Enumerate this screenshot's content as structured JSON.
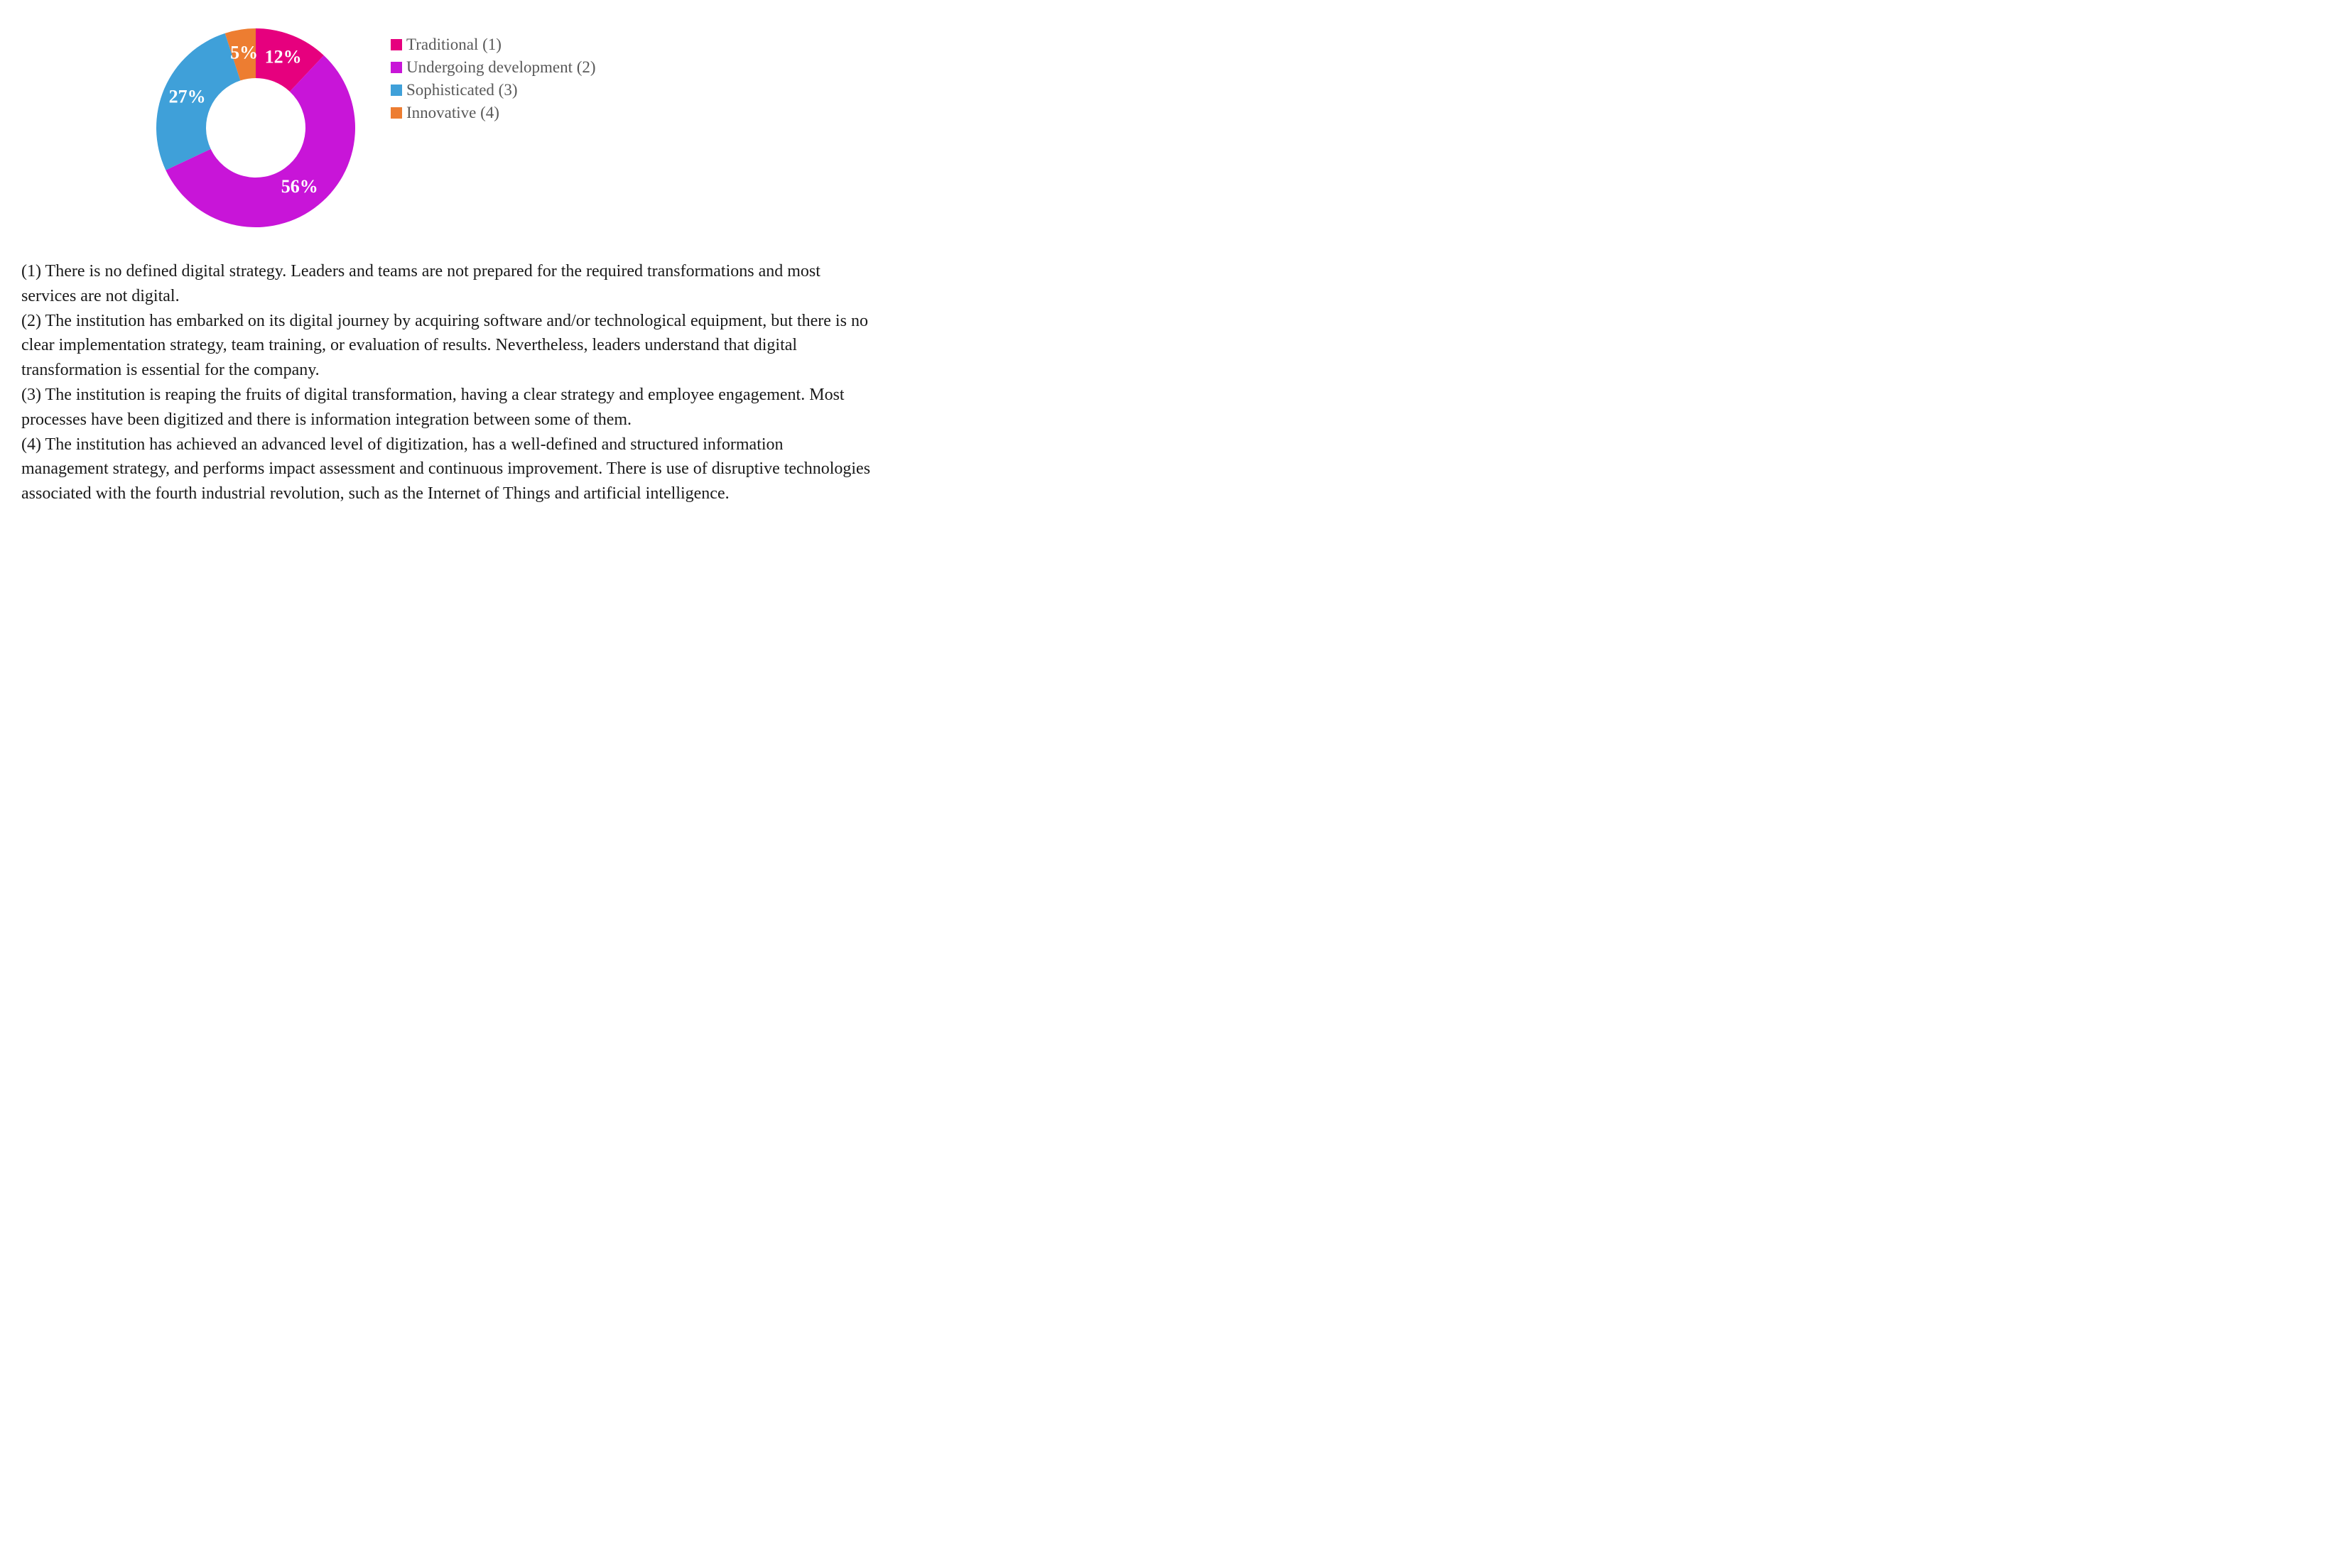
{
  "chart": {
    "type": "donut",
    "outer_radius": 140,
    "inner_radius": 70,
    "background_color": "#ffffff",
    "label_color": "#ffffff",
    "label_fontsize": 26,
    "label_fontweight": "bold",
    "start_angle_deg": -90,
    "slices": [
      {
        "key": "traditional",
        "label": "12%",
        "value": 12,
        "color": "#e6007e"
      },
      {
        "key": "undergoing",
        "label": "56%",
        "value": 56,
        "color": "#c815d8"
      },
      {
        "key": "sophisticated",
        "label": "27%",
        "value": 27,
        "color": "#3fa0d9"
      },
      {
        "key": "innovative",
        "label": "5%",
        "value": 5,
        "color": "#ed7d31"
      }
    ]
  },
  "legend": {
    "fontsize": 23,
    "text_color": "#595959",
    "swatch_size": 16,
    "items": [
      {
        "label": "Traditional (1)",
        "color": "#e6007e"
      },
      {
        "label": "Undergoing development (2)",
        "color": "#c815d8"
      },
      {
        "label": "Sophisticated (3)",
        "color": "#3fa0d9"
      },
      {
        "label": "Innovative (4)",
        "color": "#ed7d31"
      }
    ]
  },
  "descriptions": {
    "fontsize": 24,
    "text_color": "#1a1a1a",
    "items": [
      "(1) There is no defined digital strategy. Leaders and teams are not prepared for the required transformations and most services are not digital.",
      "(2) The institution has embarked on its digital journey by acquiring software and/or technological equipment, but there is no clear implementation strategy, team training, or evaluation of results. Nevertheless, leaders understand that digital transformation is essential for the company.",
      "(3) The institution is reaping the fruits of digital transformation, having a clear strategy and employee engagement. Most processes have been digitized and there is information integration between some of them.",
      "(4) The institution has achieved an advanced level of digitization, has a well-defined and structured information management strategy, and performs impact assessment and continuous improvement. There is use of disruptive technologies associated with the fourth industrial revolution, such as the Internet of Things and artificial intelligence."
    ]
  }
}
